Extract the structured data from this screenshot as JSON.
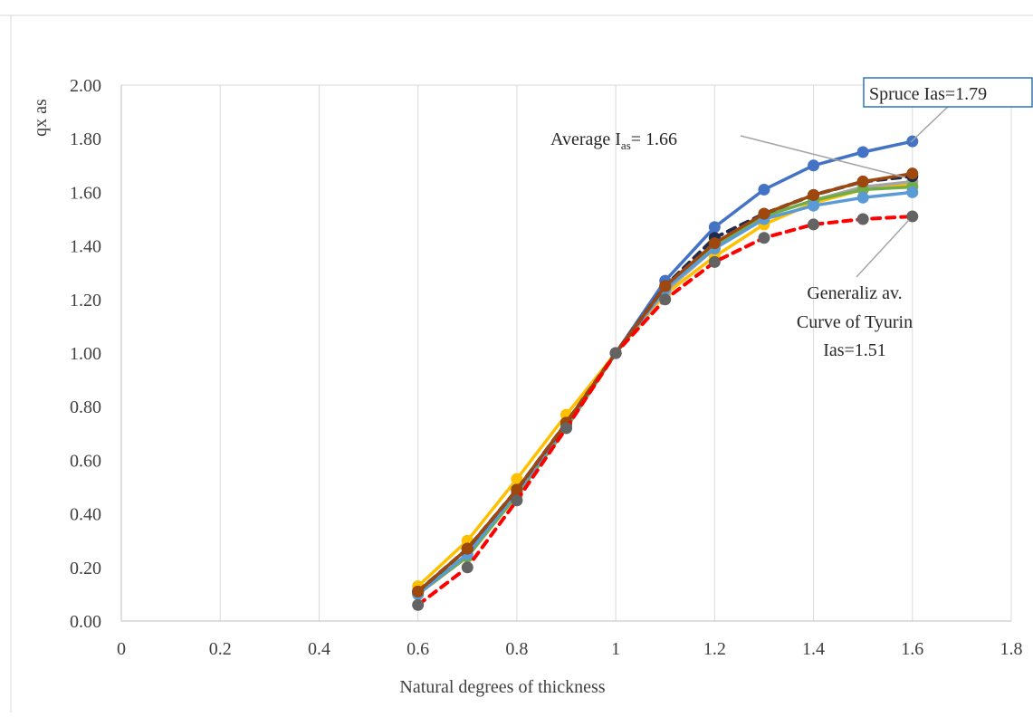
{
  "chart_data": {
    "type": "line",
    "title": "",
    "xlabel": "Natural degrees of thickness",
    "ylabel": "qx as",
    "xlim": [
      0,
      1.8
    ],
    "ylim": [
      0,
      2.0
    ],
    "x_ticks": [
      0,
      0.2,
      0.4,
      0.6,
      0.8,
      1,
      1.2,
      1.4,
      1.6,
      1.8
    ],
    "x_tick_labels": [
      "0",
      "0.2",
      "0.4",
      "0.6",
      "0.8",
      "1",
      "1.2",
      "1.4",
      "1.6",
      "1.8"
    ],
    "y_ticks": [
      0,
      0.2,
      0.4,
      0.6,
      0.8,
      1.0,
      1.2,
      1.4,
      1.6,
      1.8,
      2.0
    ],
    "y_tick_labels": [
      "0.00",
      "0.20",
      "0.40",
      "0.60",
      "0.80",
      "1.00",
      "1.20",
      "1.40",
      "1.60",
      "1.80",
      "2.00"
    ],
    "grid": "vertical",
    "legend": "none",
    "x": [
      0.6,
      0.7,
      0.8,
      0.9,
      1.0,
      1.1,
      1.2,
      1.3,
      1.4,
      1.5,
      1.6
    ],
    "series": [
      {
        "color": "#ffc000",
        "dash": false,
        "values": [
          0.13,
          0.3,
          0.53,
          0.77,
          1.0,
          1.22,
          1.36,
          1.48,
          1.56,
          1.61,
          1.63
        ]
      },
      {
        "color": "#a5a5a5",
        "dash": false,
        "values": [
          0.11,
          0.27,
          0.49,
          0.73,
          1.0,
          1.23,
          1.39,
          1.51,
          1.57,
          1.62,
          1.64
        ]
      },
      {
        "color": "#70ad47",
        "dash": false,
        "values": [
          0.1,
          0.24,
          0.47,
          0.72,
          1.0,
          1.24,
          1.4,
          1.51,
          1.57,
          1.61,
          1.62
        ]
      },
      {
        "color": "#5b9bd5",
        "dash": false,
        "values": [
          0.1,
          0.25,
          0.48,
          0.73,
          1.0,
          1.24,
          1.39,
          1.5,
          1.55,
          1.58,
          1.6
        ]
      },
      {
        "color": "#4472c4",
        "dash": false,
        "values": [
          0.11,
          0.27,
          0.49,
          0.74,
          1.0,
          1.27,
          1.47,
          1.61,
          1.7,
          1.75,
          1.79
        ]
      },
      {
        "color": "#1f2b4d",
        "dash": true,
        "values": [
          0.11,
          0.27,
          0.49,
          0.74,
          1.0,
          1.25,
          1.43,
          1.52,
          1.59,
          1.64,
          1.66
        ]
      },
      {
        "color": "#9e480e",
        "dash": false,
        "values": [
          0.11,
          0.27,
          0.49,
          0.74,
          1.0,
          1.25,
          1.41,
          1.52,
          1.59,
          1.64,
          1.67
        ]
      },
      {
        "color": "#ff0000",
        "marker_color": "#636363",
        "dash": true,
        "values": [
          0.06,
          0.2,
          0.45,
          0.72,
          1.0,
          1.2,
          1.34,
          1.43,
          1.48,
          1.5,
          1.51
        ]
      }
    ],
    "annotations": {
      "spruce": "Spruce Ias=1.79",
      "average_prefix": "Average I",
      "average_sub": "as",
      "average_suffix": "= 1.66",
      "tyurin_line1": "Generaliz av.",
      "tyurin_line2": "Curve of Tyurin",
      "tyurin_line3": "Ias=1.51"
    }
  }
}
